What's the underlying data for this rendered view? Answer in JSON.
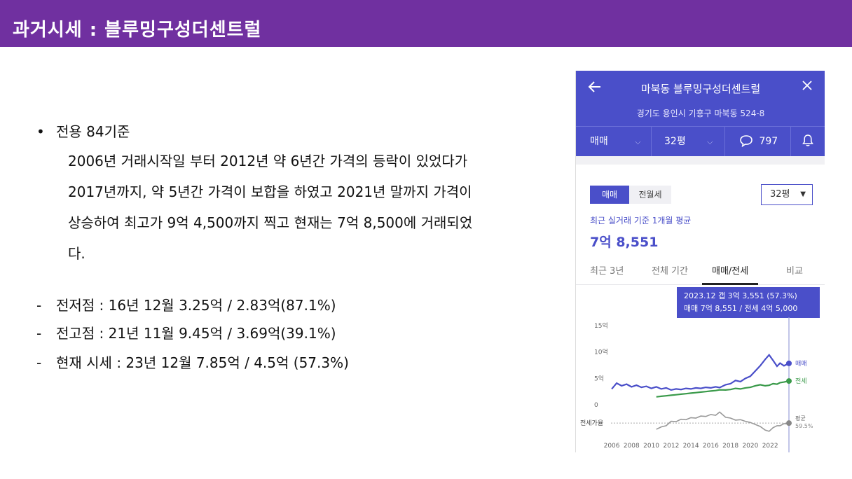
{
  "slide": {
    "title": "과거시세 : 블루밍구성더센트럴"
  },
  "content": {
    "bullet": "•",
    "bullet_head": "전용 84기준",
    "para_lines": [
      "2006년 거래시작일 부터 2012년 약 6년간 가격의 등락이 있었다가",
      "2017년까지, 약 5년간 가격이 보합을 하였고 2021년 말까지 가격이",
      "상승하여 최고가 9억 4,500까지 찍고 현재는 7억 8,500에 거래되었",
      "다."
    ],
    "dash": "-",
    "dash_items": [
      "전저점 : 16년 12월 3.25억 / 2.83억(87.1%)",
      "전고점 : 21년 11월 9.45억 / 3.69억(39.1%)",
      "현재 시세 : 23년 12월 7.85억 / 4.5억 (57.3%)"
    ]
  },
  "app": {
    "title": "마북동 블루밍구성더센트럴",
    "address": "경기도 용인시 기흥구 마북동 524-8",
    "toolbar": {
      "trade_type": "매매",
      "size": "32평",
      "comment_count": "797"
    },
    "segment": {
      "active": "매매",
      "inactive": "전월세"
    },
    "size_select": "32평",
    "avg_label": "최근 실거래 기준 1개월 평균",
    "avg_value": "7억 8,551",
    "tabs": [
      "최근 3년",
      "전체 기간",
      "매매/전세",
      "비교"
    ],
    "tooltip": {
      "line1": "2023.12 갭 3억 3,551 (57.3%)",
      "line2": "매매 7억 8,551 / 전세 4억 5,000"
    },
    "icons": {
      "back": "arrow-left-icon",
      "close": "close-icon",
      "comment": "speech-bubble-icon",
      "bell": "bell-icon"
    },
    "colors": {
      "brand": "#4a4fc9",
      "title_bar": "#7030a0",
      "sale": "#4a4fc9",
      "jeonse": "#3a9a4a",
      "ratio": "#999999"
    }
  },
  "chart_data": {
    "type": "line",
    "y_ticks": [
      "15억",
      "10억",
      "5억",
      "0"
    ],
    "x_ticks": [
      "2006",
      "2008",
      "2010",
      "2012",
      "2014",
      "2016",
      "2018",
      "2020",
      "2022"
    ],
    "ylim": [
      0,
      15
    ],
    "xlim": [
      2005.5,
      2023.9
    ],
    "ratio_label": "전세가율",
    "series": [
      {
        "name": "매매",
        "unit": "억",
        "x": [
          2006.0,
          2006.5,
          2007.0,
          2007.5,
          2008.0,
          2008.5,
          2009.0,
          2009.5,
          2010.0,
          2010.5,
          2011.0,
          2011.5,
          2012.0,
          2012.5,
          2013.0,
          2013.5,
          2014.0,
          2014.5,
          2015.0,
          2015.5,
          2016.0,
          2016.5,
          2016.9,
          2017.5,
          2018.0,
          2018.5,
          2019.0,
          2019.5,
          2020.0,
          2020.5,
          2021.0,
          2021.5,
          2021.9,
          2022.3,
          2022.7,
          2023.0,
          2023.4,
          2023.9
        ],
        "values": [
          3.0,
          4.1,
          3.6,
          3.9,
          3.4,
          3.7,
          3.3,
          3.5,
          3.1,
          3.4,
          3.0,
          3.2,
          2.8,
          3.0,
          2.9,
          3.1,
          3.0,
          3.2,
          3.1,
          3.3,
          3.2,
          3.4,
          3.25,
          3.8,
          4.0,
          4.6,
          4.4,
          5.0,
          5.4,
          6.4,
          7.4,
          8.6,
          9.45,
          8.4,
          7.3,
          7.9,
          7.4,
          7.85
        ]
      },
      {
        "name": "전세",
        "unit": "억",
        "x": [
          2010.5,
          2011.0,
          2011.5,
          2012.0,
          2012.5,
          2013.0,
          2013.5,
          2014.0,
          2014.5,
          2015.0,
          2015.5,
          2016.0,
          2016.5,
          2016.9,
          2017.5,
          2018.0,
          2018.5,
          2019.0,
          2019.5,
          2020.0,
          2020.5,
          2021.0,
          2021.5,
          2021.9,
          2022.3,
          2022.7,
          2023.0,
          2023.4,
          2023.9
        ],
        "values": [
          1.5,
          1.6,
          1.7,
          1.8,
          1.9,
          2.0,
          2.1,
          2.2,
          2.3,
          2.4,
          2.5,
          2.6,
          2.7,
          2.83,
          2.8,
          2.9,
          3.1,
          3.0,
          3.2,
          3.3,
          3.6,
          3.8,
          3.6,
          3.69,
          4.0,
          3.9,
          4.2,
          4.3,
          4.5
        ]
      }
    ],
    "ratio_series": {
      "name": "평균",
      "end_label": "59.5%",
      "x": [
        2010.5,
        2011.0,
        2011.5,
        2012.0,
        2012.5,
        2013.0,
        2013.5,
        2014.0,
        2014.5,
        2015.0,
        2015.5,
        2016.0,
        2016.5,
        2016.9,
        2017.5,
        2018.0,
        2018.5,
        2019.0,
        2019.5,
        2020.0,
        2020.5,
        2021.0,
        2021.5,
        2021.9,
        2022.3,
        2022.7,
        2023.0,
        2023.4,
        2023.9
      ],
      "values": [
        44,
        50,
        53,
        64,
        63,
        69,
        68,
        73,
        72,
        77,
        76,
        81,
        79,
        87,
        74,
        72,
        67,
        68,
        64,
        61,
        56,
        51,
        42,
        39,
        48,
        53,
        53,
        58,
        57
      ]
    },
    "end_labels": {
      "sale": "매매",
      "jeonse": "전세",
      "ratio_line1": "평균",
      "ratio_line2": "59.5%"
    }
  }
}
